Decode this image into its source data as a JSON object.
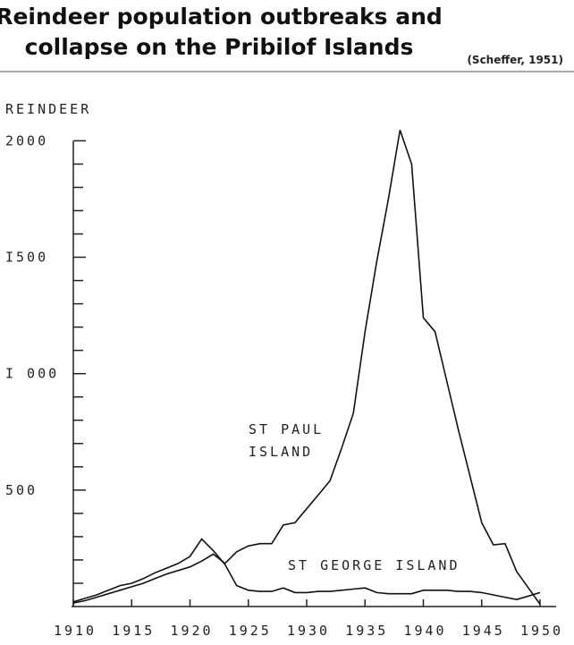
{
  "chart_data": {
    "type": "line",
    "title": [
      "Reindeer population outbreaks and",
      "collapse on the Pribilof Islands"
    ],
    "source": "(Scheffer, 1951)",
    "ylabel": "REINDEER",
    "annotations": [
      "ST PAUL",
      "ISLAND",
      "ST GEORGE ISLAND"
    ],
    "x": [
      1910,
      1911,
      1912,
      1913,
      1914,
      1915,
      1916,
      1917,
      1918,
      1919,
      1920,
      1921,
      1922,
      1923,
      1924,
      1925,
      1926,
      1927,
      1928,
      1929,
      1930,
      1931,
      1932,
      1933,
      1934,
      1935,
      1936,
      1937,
      1938,
      1939,
      1940,
      1941,
      1942,
      1943,
      1944,
      1945,
      1946,
      1947,
      1948,
      1949,
      1950
    ],
    "series": [
      {
        "name": "ST PAUL ISLAND",
        "color": "#111111",
        "values": [
          15,
          25,
          40,
          55,
          70,
          85,
          100,
          120,
          140,
          155,
          170,
          195,
          225,
          185,
          235,
          260,
          270,
          270,
          350,
          360,
          420,
          480,
          540,
          680,
          830,
          1180,
          1480,
          1750,
          2046,
          1900,
          1240,
          1180,
          970,
          760,
          560,
          360,
          265,
          270,
          150,
          80,
          10
        ]
      },
      {
        "name": "ST GEORGE ISLAND",
        "color": "#111111",
        "values": [
          20,
          35,
          50,
          70,
          90,
          100,
          120,
          145,
          165,
          185,
          215,
          290,
          240,
          180,
          90,
          70,
          65,
          65,
          80,
          60,
          60,
          65,
          65,
          70,
          75,
          80,
          60,
          55,
          55,
          55,
          70,
          70,
          70,
          65,
          65,
          60,
          50,
          40,
          30,
          45,
          60
        ]
      }
    ],
    "xlim": [
      1910,
      1950
    ],
    "xticks": [
      1910,
      1915,
      1920,
      1925,
      1930,
      1935,
      1940,
      1945,
      1950
    ],
    "ylim": [
      0,
      2100
    ],
    "yticks": [
      {
        "value": 500,
        "label": "500"
      },
      {
        "value": 1000,
        "label": "I 000"
      },
      {
        "value": 1500,
        "label": "I500"
      },
      {
        "value": 2000,
        "label": "2000"
      }
    ],
    "yminorticks": [
      100,
      200,
      300,
      400,
      600,
      700,
      800,
      900,
      1100,
      1200,
      1300,
      1400,
      1600,
      1700,
      1800,
      1900
    ]
  }
}
